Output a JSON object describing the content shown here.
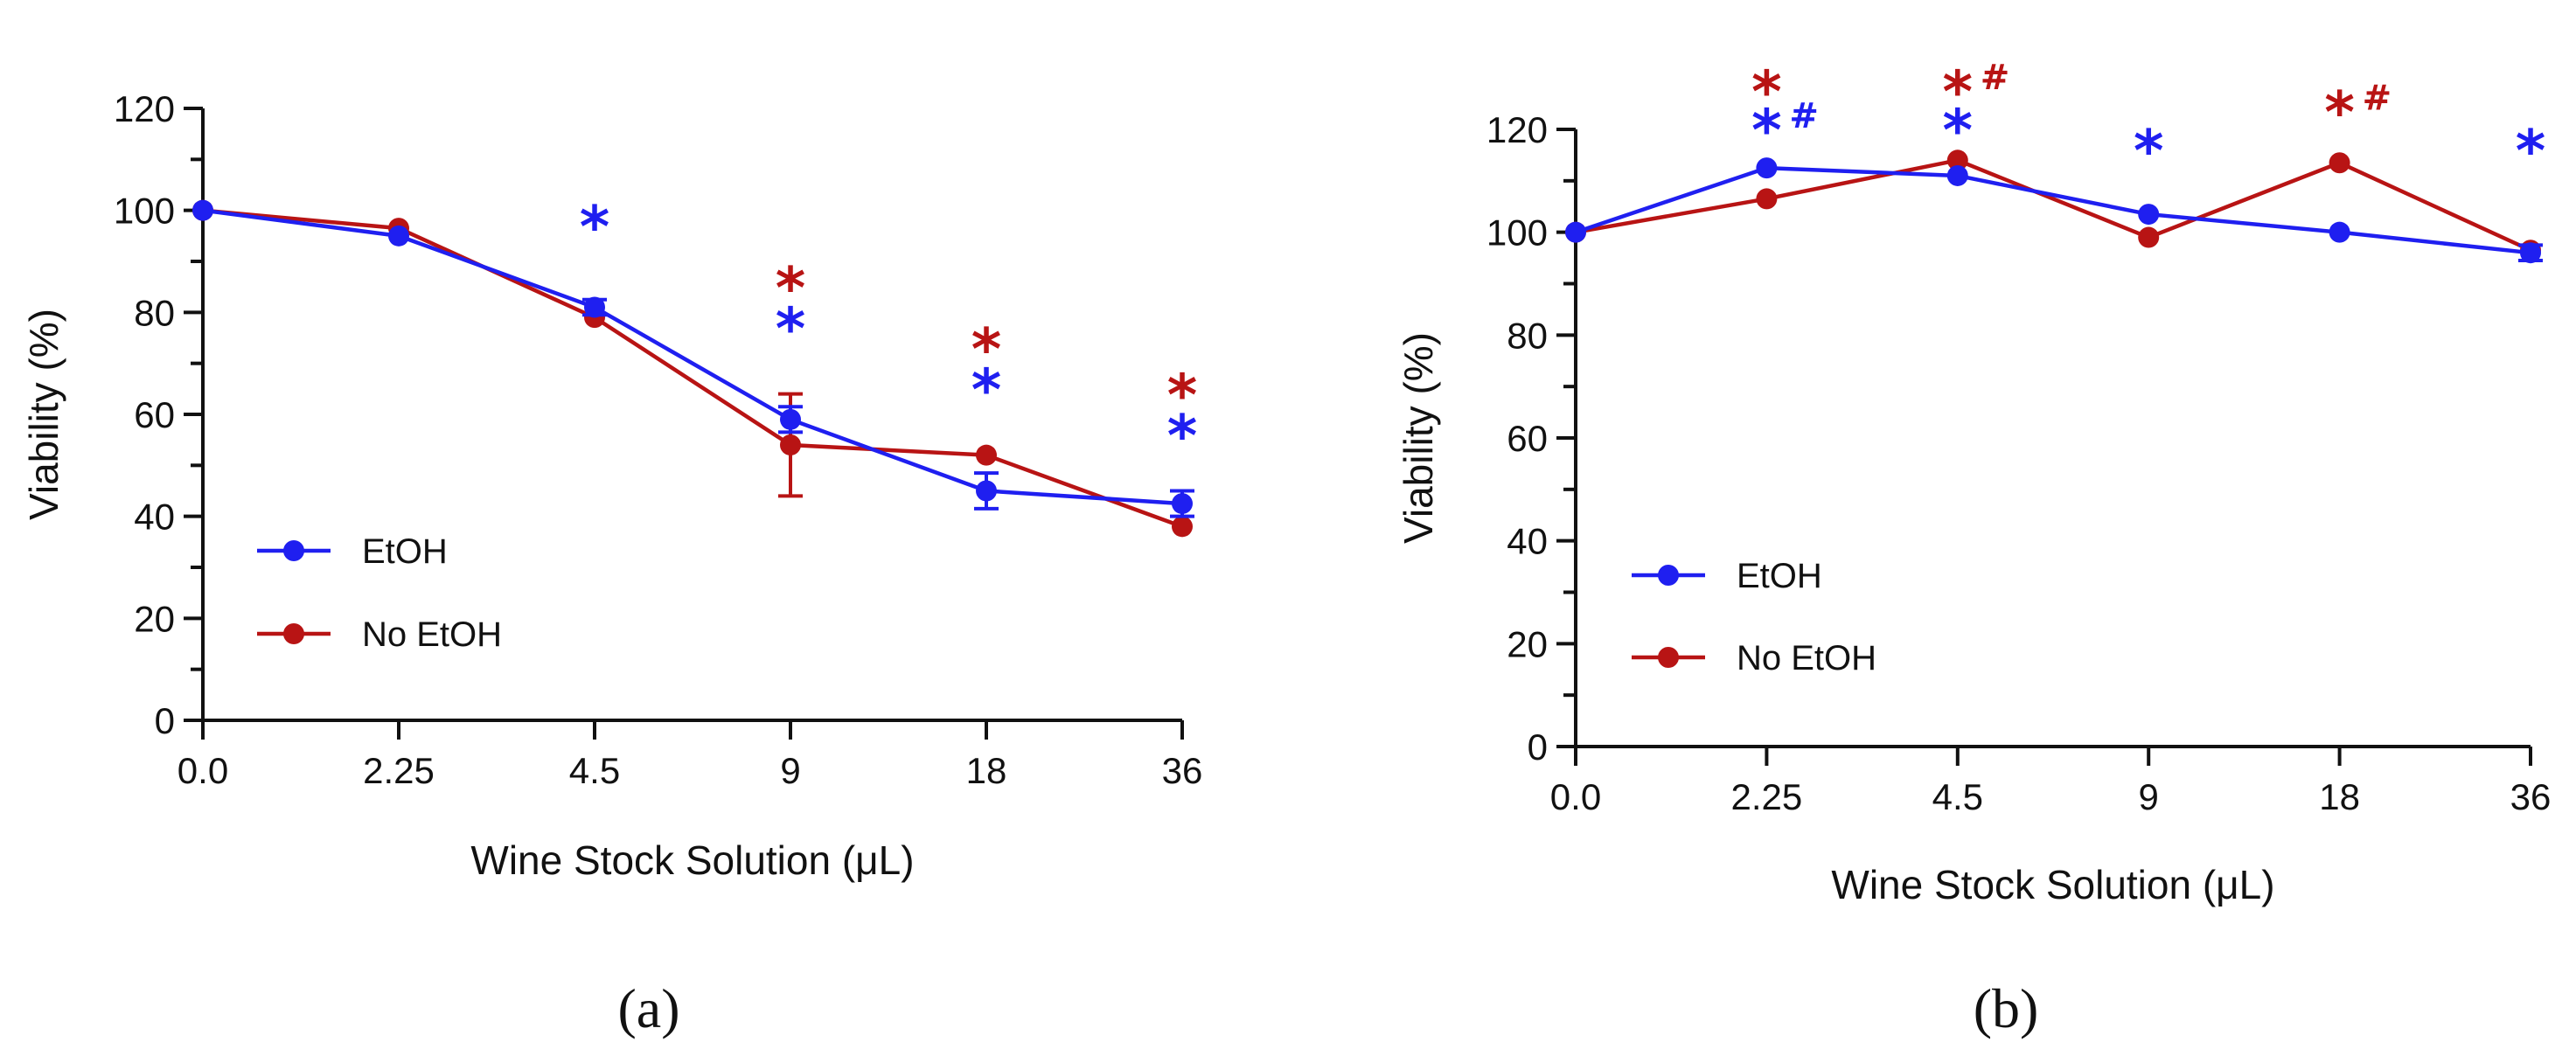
{
  "colors": {
    "etoh": "#1f1ff0",
    "no_etoh": "#b81414",
    "axis": "#111111"
  },
  "chart_data": [
    {
      "type": "line",
      "panel_label": "(a)",
      "categories": [
        "0.0",
        "2.25",
        "4.5",
        "9",
        "18",
        "36"
      ],
      "xlabel": "Wine Stock Solution (μL)",
      "ylabel": "Viability (%)",
      "ylim": [
        0,
        120
      ],
      "yticks": [
        "0",
        "20",
        "40",
        "60",
        "80",
        "100",
        "120"
      ],
      "legend_position": "lower-left",
      "series": [
        {
          "name": "EtOH",
          "color": "#1f1ff0",
          "values": [
            100,
            95,
            81,
            59,
            45,
            42.5
          ],
          "errors": [
            0,
            0,
            1.5,
            2.5,
            3.5,
            2.5
          ]
        },
        {
          "name": "No EtOH",
          "color": "#b81414",
          "values": [
            100,
            96.5,
            79,
            54,
            52,
            38
          ],
          "errors": [
            0,
            0,
            0,
            10,
            0,
            0
          ]
        }
      ],
      "significance": [
        {
          "category": "4.5",
          "marks": [
            {
              "text": "*",
              "color": "#1f1ff0",
              "y": 98
            }
          ]
        },
        {
          "category": "9",
          "marks": [
            {
              "text": "*",
              "color": "#b81414",
              "y": 86
            },
            {
              "text": "*",
              "color": "#1f1ff0",
              "y": 78
            }
          ]
        },
        {
          "category": "18",
          "marks": [
            {
              "text": "*",
              "color": "#b81414",
              "y": 74
            },
            {
              "text": "*",
              "color": "#1f1ff0",
              "y": 66
            }
          ]
        },
        {
          "category": "36",
          "marks": [
            {
              "text": "*",
              "color": "#b81414",
              "y": 65
            },
            {
              "text": "*",
              "color": "#1f1ff0",
              "y": 57
            }
          ]
        }
      ]
    },
    {
      "type": "line",
      "panel_label": "(b)",
      "categories": [
        "0.0",
        "2.25",
        "4.5",
        "9",
        "18",
        "36"
      ],
      "xlabel": "Wine Stock Solution (μL)",
      "ylabel": "Viability (%)",
      "ylim": [
        0,
        120
      ],
      "yticks": [
        "0",
        "20",
        "40",
        "60",
        "80",
        "100",
        "120"
      ],
      "legend_position": "lower-left",
      "series": [
        {
          "name": "EtOH",
          "color": "#1f1ff0",
          "values": [
            100,
            112.5,
            111,
            103.5,
            100,
            96
          ],
          "errors": [
            0,
            0,
            0,
            0,
            0,
            1.5
          ]
        },
        {
          "name": "No EtOH",
          "color": "#b81414",
          "values": [
            100,
            106.5,
            114,
            99,
            113.5,
            96.5
          ],
          "errors": [
            0,
            0,
            0,
            0,
            0,
            0
          ]
        }
      ],
      "significance": [
        {
          "category": "2.25",
          "marks": [
            {
              "text": "*",
              "color": "#b81414",
              "y": 128.5
            },
            {
              "text": "*#",
              "color": "#1f1ff0",
              "y": 121
            }
          ]
        },
        {
          "category": "4.5",
          "marks": [
            {
              "text": "*#",
              "color": "#b81414",
              "y": 128.5
            },
            {
              "text": "*",
              "color": "#1f1ff0",
              "y": 121
            }
          ]
        },
        {
          "category": "9",
          "marks": [
            {
              "text": "*",
              "color": "#1f1ff0",
              "y": 117
            }
          ]
        },
        {
          "category": "18",
          "marks": [
            {
              "text": "*#",
              "color": "#b81414",
              "y": 124.5
            }
          ]
        },
        {
          "category": "36",
          "marks": [
            {
              "text": "*",
              "color": "#1f1ff0",
              "y": 117
            }
          ]
        }
      ]
    }
  ]
}
